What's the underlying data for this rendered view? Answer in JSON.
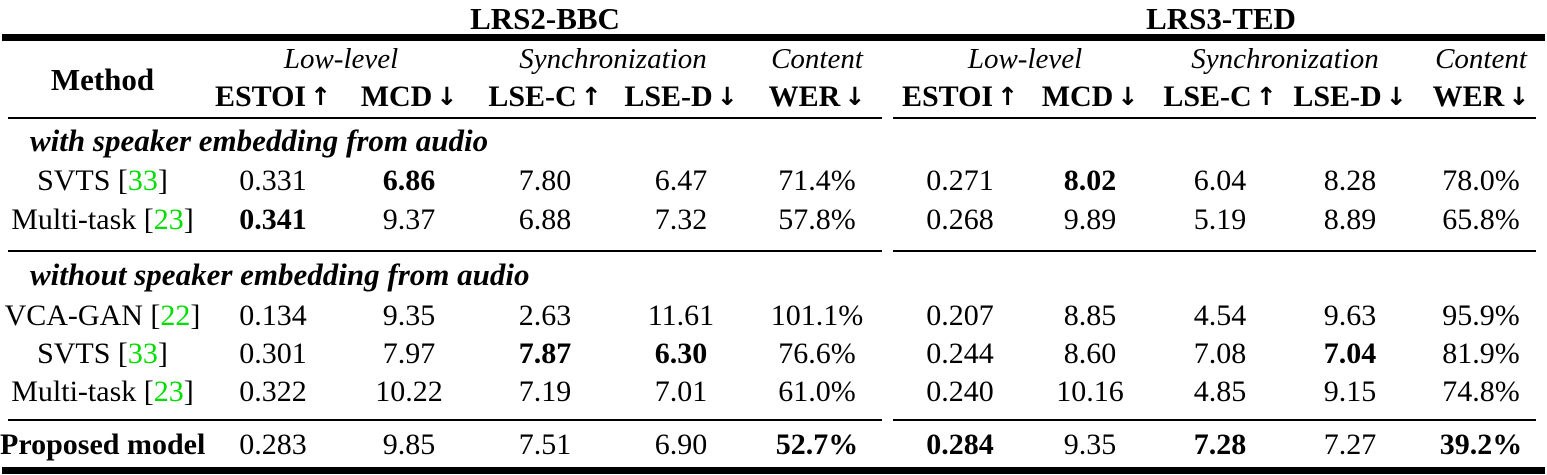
{
  "table": {
    "method_label": "Method",
    "datasets": [
      {
        "name": "LRS2-BBC",
        "groups": [
          {
            "label": "Low-level",
            "span": 2
          },
          {
            "label": "Synchronization",
            "span": 2
          },
          {
            "label": "Content",
            "span": 1
          }
        ],
        "columns": [
          {
            "label": "ESTOI",
            "direction": "up",
            "arrow": "↑"
          },
          {
            "label": "MCD",
            "direction": "down",
            "arrow": "↓"
          },
          {
            "label": "LSE-C",
            "direction": "up",
            "arrow": "↑"
          },
          {
            "label": "LSE-D",
            "direction": "down",
            "arrow": "↓"
          },
          {
            "label": "WER",
            "direction": "down",
            "arrow": "↓"
          }
        ]
      },
      {
        "name": "LRS3-TED",
        "groups": [
          {
            "label": "Low-level",
            "span": 2
          },
          {
            "label": "Synchronization",
            "span": 2
          },
          {
            "label": "Content",
            "span": 1
          }
        ],
        "columns": [
          {
            "label": "ESTOI",
            "direction": "up",
            "arrow": "↑"
          },
          {
            "label": "MCD",
            "direction": "down",
            "arrow": "↓"
          },
          {
            "label": "LSE-C",
            "direction": "up",
            "arrow": "↑"
          },
          {
            "label": "LSE-D",
            "direction": "down",
            "arrow": "↓"
          },
          {
            "label": "WER",
            "direction": "down",
            "arrow": "↓"
          }
        ]
      }
    ],
    "sections": [
      {
        "title": "with speaker embedding from audio",
        "rows": [
          {
            "method": "SVTS",
            "citation": "33",
            "bold_method": false,
            "values": [
              {
                "text": "0.331",
                "bold": false
              },
              {
                "text": "6.86",
                "bold": true
              },
              {
                "text": "7.80",
                "bold": false
              },
              {
                "text": "6.47",
                "bold": false
              },
              {
                "text": "71.4%",
                "bold": false
              },
              {
                "text": "0.271",
                "bold": false
              },
              {
                "text": "8.02",
                "bold": true
              },
              {
                "text": "6.04",
                "bold": false
              },
              {
                "text": "8.28",
                "bold": false
              },
              {
                "text": "78.0%",
                "bold": false
              }
            ]
          },
          {
            "method": "Multi-task",
            "citation": "23",
            "bold_method": false,
            "values": [
              {
                "text": "0.341",
                "bold": true
              },
              {
                "text": "9.37",
                "bold": false
              },
              {
                "text": "6.88",
                "bold": false
              },
              {
                "text": "7.32",
                "bold": false
              },
              {
                "text": "57.8%",
                "bold": false
              },
              {
                "text": "0.268",
                "bold": false
              },
              {
                "text": "9.89",
                "bold": false
              },
              {
                "text": "5.19",
                "bold": false
              },
              {
                "text": "8.89",
                "bold": false
              },
              {
                "text": "65.8%",
                "bold": false
              }
            ]
          }
        ]
      },
      {
        "title": "without speaker embedding from audio",
        "rows": [
          {
            "method": "VCA-GAN",
            "citation": "22",
            "bold_method": false,
            "values": [
              {
                "text": "0.134",
                "bold": false
              },
              {
                "text": "9.35",
                "bold": false
              },
              {
                "text": "2.63",
                "bold": false
              },
              {
                "text": "11.61",
                "bold": false
              },
              {
                "text": "101.1%",
                "bold": false
              },
              {
                "text": "0.207",
                "bold": false
              },
              {
                "text": "8.85",
                "bold": false
              },
              {
                "text": "4.54",
                "bold": false
              },
              {
                "text": "9.63",
                "bold": false
              },
              {
                "text": "95.9%",
                "bold": false
              }
            ]
          },
          {
            "method": "SVTS",
            "citation": "33",
            "bold_method": false,
            "values": [
              {
                "text": "0.301",
                "bold": false
              },
              {
                "text": "7.97",
                "bold": false
              },
              {
                "text": "7.87",
                "bold": true
              },
              {
                "text": "6.30",
                "bold": true
              },
              {
                "text": "76.6%",
                "bold": false
              },
              {
                "text": "0.244",
                "bold": false
              },
              {
                "text": "8.60",
                "bold": false
              },
              {
                "text": "7.08",
                "bold": false
              },
              {
                "text": "7.04",
                "bold": true
              },
              {
                "text": "81.9%",
                "bold": false
              }
            ]
          },
          {
            "method": "Multi-task",
            "citation": "23",
            "bold_method": false,
            "values": [
              {
                "text": "0.322",
                "bold": false
              },
              {
                "text": "10.22",
                "bold": false
              },
              {
                "text": "7.19",
                "bold": false
              },
              {
                "text": "7.01",
                "bold": false
              },
              {
                "text": "61.0%",
                "bold": false
              },
              {
                "text": "0.240",
                "bold": false
              },
              {
                "text": "10.16",
                "bold": false
              },
              {
                "text": "4.85",
                "bold": false
              },
              {
                "text": "9.15",
                "bold": false
              },
              {
                "text": "74.8%",
                "bold": false
              }
            ]
          }
        ]
      }
    ],
    "final_row": {
      "method": "Proposed model",
      "citation": null,
      "bold_method": true,
      "values": [
        {
          "text": "0.283",
          "bold": false
        },
        {
          "text": "9.85",
          "bold": false
        },
        {
          "text": "7.51",
          "bold": false
        },
        {
          "text": "6.90",
          "bold": false
        },
        {
          "text": "52.7%",
          "bold": true
        },
        {
          "text": "0.284",
          "bold": true
        },
        {
          "text": "9.35",
          "bold": false
        },
        {
          "text": "7.28",
          "bold": true
        },
        {
          "text": "7.27",
          "bold": false
        },
        {
          "text": "39.2%",
          "bold": true
        }
      ]
    }
  },
  "colors": {
    "text": "#000000",
    "background": "#ffffff",
    "citation_green": "#00dd00",
    "rule": "#000000"
  }
}
